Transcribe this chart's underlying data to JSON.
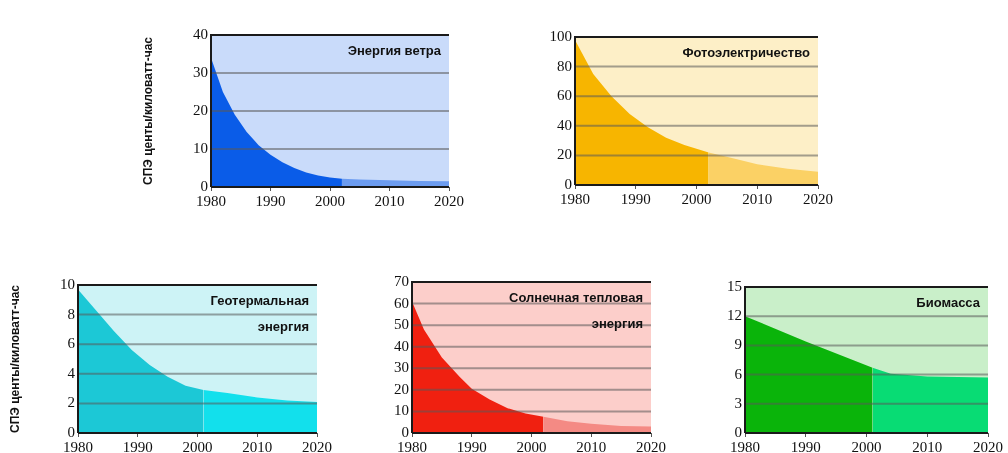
{
  "chart_data": [
    {
      "type": "area",
      "title": "Энергия ветра",
      "ylabel": "СПЭ центы/киловатт-час",
      "xlim": [
        1980,
        2020
      ],
      "xticks": [
        1980,
        1990,
        2000,
        2010,
        2020
      ],
      "ylim": [
        0,
        40
      ],
      "yticks": [
        0,
        10,
        20,
        30,
        40
      ],
      "grid": "y",
      "legend": false,
      "series": [
        {
          "color": "#0a5ce8",
          "x": [
            1980,
            1982,
            1984,
            1986,
            1988,
            1990,
            1992,
            1994,
            1996,
            1998,
            2000,
            2002
          ],
          "values": [
            34,
            25,
            19,
            14.5,
            11,
            8.5,
            6.5,
            5,
            3.8,
            3,
            2.5,
            2.2
          ]
        },
        {
          "color": "#6c9cf0",
          "x": [
            2002,
            2005,
            2010,
            2015,
            2020
          ],
          "values": [
            2.2,
            2,
            1.8,
            1.6,
            1.5
          ]
        }
      ]
    },
    {
      "type": "area",
      "title": "Фотоэлектричество",
      "xlim": [
        1980,
        2020
      ],
      "xticks": [
        1980,
        1990,
        2000,
        2010,
        2020
      ],
      "ylim": [
        0,
        100
      ],
      "yticks": [
        0,
        20,
        40,
        60,
        80,
        100
      ],
      "grid": "y",
      "legend": false,
      "series": [
        {
          "color": "#f7b500",
          "x": [
            1980,
            1983,
            1986,
            1989,
            1992,
            1995,
            1998,
            2002
          ],
          "values": [
            98,
            75,
            60,
            48,
            39,
            32,
            27,
            22
          ]
        },
        {
          "color": "#fbd165",
          "x": [
            2002,
            2006,
            2010,
            2015,
            2020
          ],
          "values": [
            22,
            18,
            14,
            11,
            9
          ]
        }
      ]
    },
    {
      "type": "area",
      "title": "Геотермальная энергия",
      "ylabel": "СПЭ центы/киловатт-час",
      "xlim": [
        1980,
        2020
      ],
      "xticks": [
        1980,
        1990,
        2000,
        2010,
        2020
      ],
      "ylim": [
        0,
        10
      ],
      "yticks": [
        0,
        2,
        4,
        6,
        8,
        10
      ],
      "grid": "y",
      "legend": false,
      "series": [
        {
          "color": "#1cc8d6",
          "x": [
            1980,
            1983,
            1986,
            1989,
            1992,
            1995,
            1998,
            2001
          ],
          "values": [
            9.7,
            8.3,
            6.9,
            5.6,
            4.6,
            3.8,
            3.2,
            2.9
          ]
        },
        {
          "color": "#12e0ec",
          "x": [
            2001,
            2005,
            2010,
            2015,
            2020
          ],
          "values": [
            2.9,
            2.7,
            2.4,
            2.2,
            2.1
          ]
        }
      ]
    },
    {
      "type": "area",
      "title": "Солнечная тепловая энергия",
      "xlim": [
        1980,
        2020
      ],
      "xticks": [
        1980,
        1990,
        2000,
        2010,
        2020
      ],
      "ylim": [
        0,
        70
      ],
      "yticks": [
        0,
        10,
        20,
        30,
        40,
        50,
        60,
        70
      ],
      "grid": "y",
      "legend": false,
      "series": [
        {
          "color": "#f02010",
          "x": [
            1980,
            1982,
            1985,
            1988,
            1990,
            1993,
            1996,
            1999,
            2002
          ],
          "values": [
            61,
            48,
            35,
            26,
            20.5,
            15.5,
            11.5,
            9,
            7.5
          ]
        },
        {
          "color": "#f48a84",
          "x": [
            2002,
            2006,
            2010,
            2015,
            2020
          ],
          "values": [
            7.5,
            5.5,
            4.3,
            3.3,
            3
          ]
        }
      ]
    },
    {
      "type": "area",
      "title": "Биомасса",
      "xlim": [
        1980,
        2020
      ],
      "xticks": [
        1980,
        1990,
        2000,
        2010,
        2020
      ],
      "ylim": [
        0,
        15
      ],
      "yticks": [
        0,
        3,
        6,
        9,
        12,
        15
      ],
      "grid": "y",
      "legend": false,
      "series": [
        {
          "color": "#0ab40a",
          "x": [
            1980,
            1990,
            2001
          ],
          "values": [
            12,
            9.4,
            6.7
          ]
        },
        {
          "color": "#08dc74",
          "x": [
            2001,
            2004,
            2010,
            2020
          ],
          "values": [
            6.7,
            6.1,
            5.8,
            5.7
          ]
        }
      ]
    }
  ]
}
